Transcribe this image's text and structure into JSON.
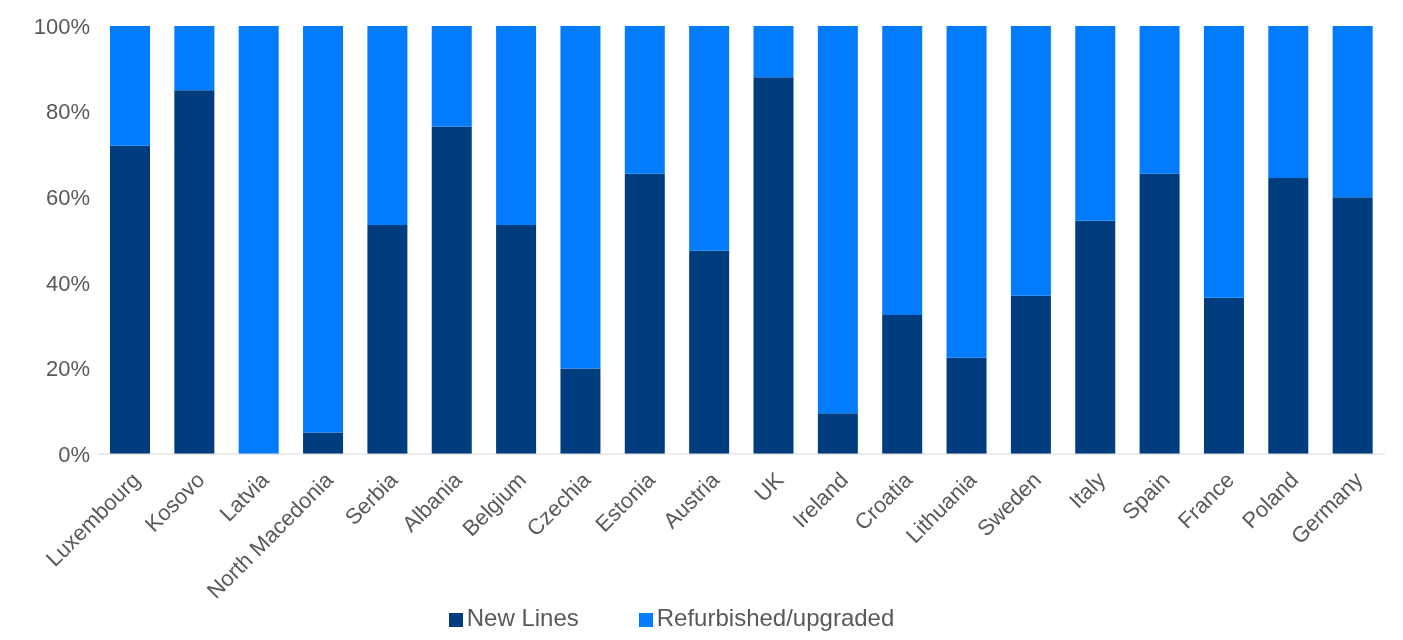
{
  "chart_data": {
    "type": "bar",
    "stacked": true,
    "categories": [
      "Luxembourg",
      "Kosovo",
      "Latvia",
      "North Macedonia",
      "Serbia",
      "Albania",
      "Belgium",
      "Czechia",
      "Estonia",
      "Austria",
      "UK",
      "Ireland",
      "Croatia",
      "Lithuania",
      "Sweden",
      "Italy",
      "Spain",
      "France",
      "Poland",
      "Germany"
    ],
    "series": [
      {
        "name": "New Lines",
        "color": "#003d7e",
        "values": [
          72,
          85,
          0,
          5,
          53.5,
          76.5,
          53.5,
          20,
          65.5,
          47.5,
          88,
          9.5,
          32.5,
          22.5,
          37,
          54.5,
          65.5,
          36.5,
          64.5,
          60
        ]
      },
      {
        "name": "Refurbished/upgraded",
        "color": "#027cfd",
        "values": [
          28,
          15,
          100,
          95,
          46.5,
          23.5,
          46.5,
          80,
          34.5,
          52.5,
          12,
          90.5,
          67.5,
          77.5,
          63,
          45.5,
          34.5,
          63.5,
          35.5,
          40
        ]
      }
    ],
    "ylim": [
      0,
      100
    ],
    "yticks": [
      {
        "value": 0,
        "label": "0%"
      },
      {
        "value": 20,
        "label": "20%"
      },
      {
        "value": 40,
        "label": "40%"
      },
      {
        "value": 60,
        "label": "60%"
      },
      {
        "value": 80,
        "label": "80%"
      },
      {
        "value": 100,
        "label": "100%"
      }
    ],
    "legend": "bottom"
  }
}
